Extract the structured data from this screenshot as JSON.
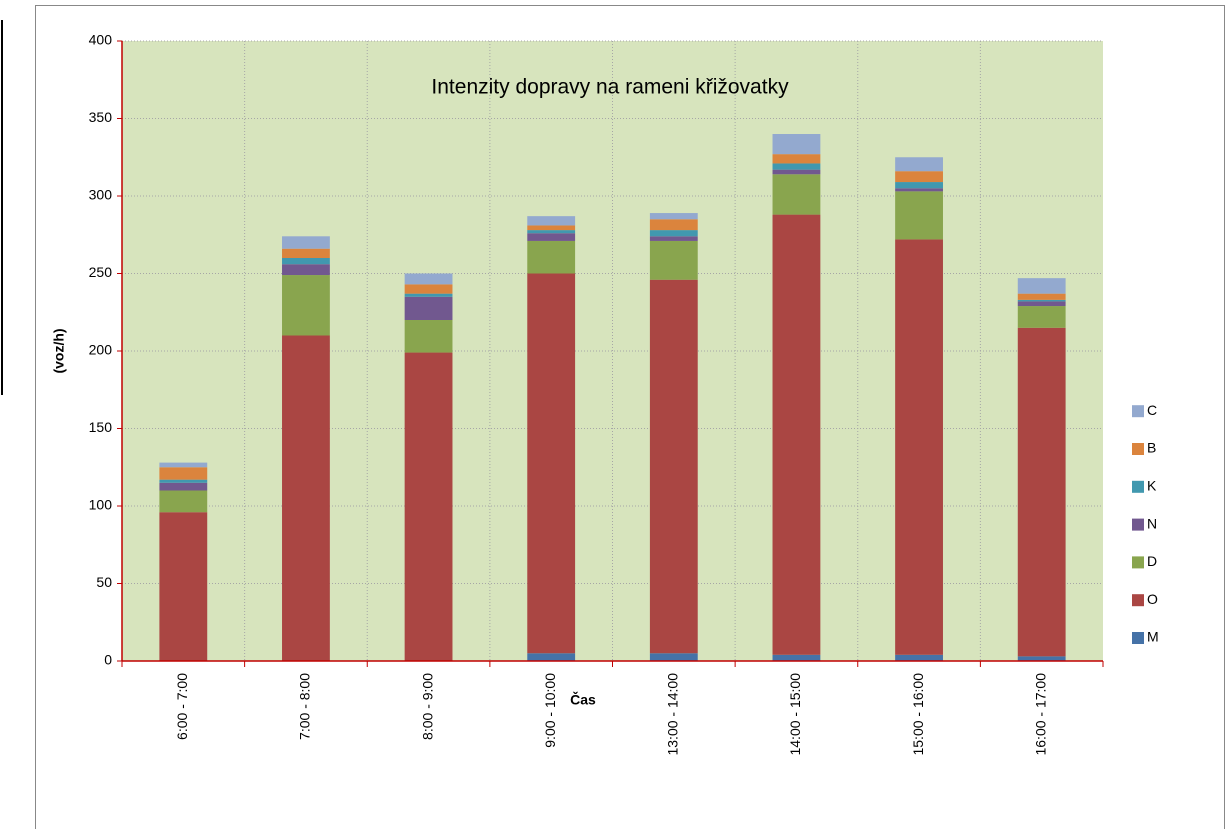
{
  "chart_data": {
    "type": "stacked_bar",
    "title": "Intenzity dopravy na rameni křižovatky",
    "x_label": "Čas",
    "y_label": "(voz/h)",
    "categories": [
      "6:00 - 7:00",
      "7:00 - 8:00",
      "8:00 - 9:00",
      "9:00 - 10:00",
      "13:00 - 14:00",
      "14:00 - 15:00",
      "15:00 - 16:00",
      "16:00 - 17:00"
    ],
    "series": [
      {
        "name": "M",
        "color": "#4572a7",
        "values": [
          0,
          0,
          0,
          5,
          5,
          4,
          4,
          3
        ]
      },
      {
        "name": "O",
        "color": "#aa4643",
        "values": [
          96,
          210,
          199,
          245,
          241,
          284,
          268,
          212
        ]
      },
      {
        "name": "D",
        "color": "#89a54e",
        "values": [
          14,
          39,
          21,
          21,
          25,
          26,
          31,
          14
        ]
      },
      {
        "name": "N",
        "color": "#71588f",
        "values": [
          5,
          7,
          15,
          5,
          3,
          3,
          2,
          3
        ]
      },
      {
        "name": "K",
        "color": "#4198af",
        "values": [
          2,
          4,
          2,
          2,
          4,
          4,
          4,
          1
        ]
      },
      {
        "name": "B",
        "color": "#db843d",
        "values": [
          8,
          6,
          6,
          3,
          7,
          6,
          7,
          4
        ]
      },
      {
        "name": "C",
        "color": "#93a9cf",
        "values": [
          3,
          8,
          7,
          6,
          4,
          13,
          9,
          10
        ]
      }
    ],
    "ylim": [
      0,
      400
    ],
    "yticks": [
      0,
      50,
      100,
      150,
      200,
      250,
      300,
      350,
      400
    ],
    "grid": true,
    "plot_background": "#d7e4bd",
    "legend": "right"
  }
}
